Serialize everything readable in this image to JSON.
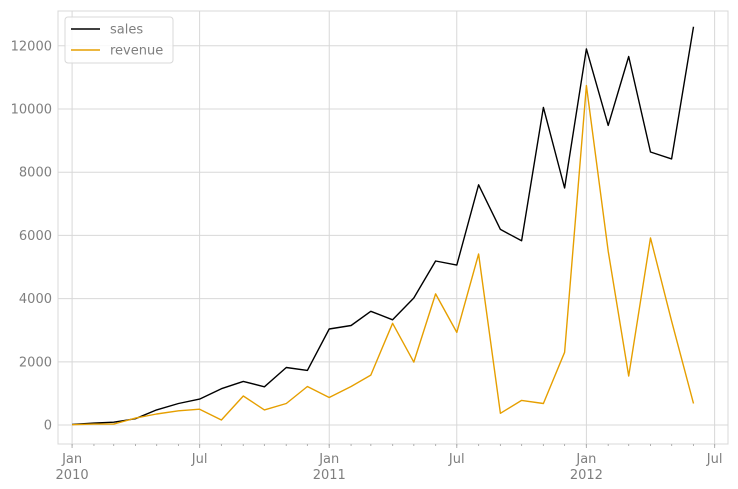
{
  "chart_data": {
    "type": "line",
    "xlabel": "",
    "ylabel": "",
    "grid": true,
    "legend_position": "top-left",
    "x": [
      "2010-01",
      "2010-02",
      "2010-03",
      "2010-04",
      "2010-05",
      "2010-06",
      "2010-07",
      "2010-08",
      "2010-09",
      "2010-10",
      "2010-11",
      "2010-12",
      "2011-01",
      "2011-02",
      "2011-03",
      "2011-04",
      "2011-05",
      "2011-06",
      "2011-07",
      "2011-08",
      "2011-09",
      "2011-10",
      "2011-11",
      "2011-12",
      "2012-01",
      "2012-02",
      "2012-03",
      "2012-04",
      "2012-05",
      "2012-06"
    ],
    "xlim": [
      "2009-12-12",
      "2012-07-20"
    ],
    "ylim": [
      -600,
      13100
    ],
    "y_ticks": [
      0,
      2000,
      4000,
      6000,
      8000,
      10000,
      12000
    ],
    "x_ticks": [
      {
        "date": "2010-01",
        "line1": "Jan",
        "line2": "2010"
      },
      {
        "date": "2010-07",
        "line1": "Jul",
        "line2": ""
      },
      {
        "date": "2011-01",
        "line1": "Jan",
        "line2": "2011"
      },
      {
        "date": "2011-07",
        "line1": "Jul",
        "line2": ""
      },
      {
        "date": "2012-01",
        "line1": "Jan",
        "line2": "2012"
      },
      {
        "date": "2012-07",
        "line1": "Jul",
        "line2": ""
      }
    ],
    "series": [
      {
        "name": "sales",
        "color": "#000000",
        "values": [
          20,
          60,
          90,
          200,
          480,
          680,
          820,
          1150,
          1380,
          1210,
          1820,
          1730,
          3040,
          3150,
          3600,
          3330,
          4020,
          5190,
          5060,
          7600,
          6190,
          5830,
          10050,
          7500,
          11900,
          9480,
          11660,
          8640,
          8420,
          12600
        ]
      },
      {
        "name": "revenue",
        "color": "#e69f00",
        "values": [
          10,
          30,
          30,
          220,
          350,
          450,
          500,
          160,
          920,
          480,
          680,
          1220,
          870,
          1220,
          1580,
          3220,
          1990,
          4150,
          2930,
          5410,
          370,
          780,
          680,
          2300,
          10740,
          5500,
          1550,
          5920,
          3290,
          680
        ]
      }
    ]
  }
}
